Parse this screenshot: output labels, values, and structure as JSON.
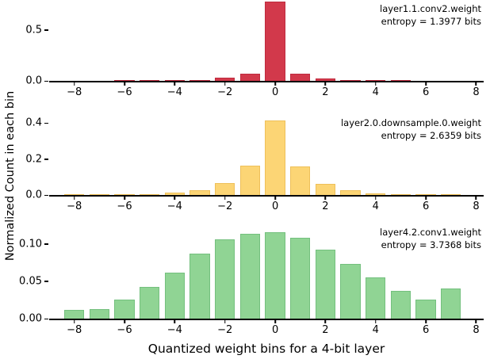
{
  "chart_data": {
    "type": "bar",
    "title": "",
    "xlabel": "Quantized weight bins for a 4-bit layer",
    "ylabel": "Normalized Count in each bin",
    "xlim": [
      -9.0,
      8.3
    ],
    "bar_width": 0.8,
    "grid": false,
    "bins": [
      -8,
      -7,
      -6,
      -5,
      -4,
      -3,
      -2,
      -1,
      0,
      1,
      2,
      3,
      4,
      5,
      6,
      7
    ],
    "x_ticks": [
      {
        "value": -8,
        "label": "−8"
      },
      {
        "value": -6,
        "label": "−6"
      },
      {
        "value": -4,
        "label": "−4"
      },
      {
        "value": -2,
        "label": "−2"
      },
      {
        "value": 0,
        "label": "0"
      },
      {
        "value": 2,
        "label": "2"
      },
      {
        "value": 4,
        "label": "4"
      },
      {
        "value": 6,
        "label": "6"
      },
      {
        "value": 8,
        "label": "8"
      }
    ],
    "subplots": [
      {
        "name": "layer1.1.conv2.weight",
        "entropy_label": "entropy = 1.3977 bits",
        "entropy_bits": 1.3977,
        "color": "#d2394b",
        "edge_color": "#bf2c3f",
        "ylim": [
          0,
          0.78
        ],
        "y_ticks": [
          {
            "value": 0.0,
            "label": "0.0"
          },
          {
            "value": 0.5,
            "label": "0.5"
          }
        ],
        "values": [
          0,
          0,
          0.001,
          0.002,
          0.004,
          0.01,
          0.028,
          0.068,
          0.78,
          0.068,
          0.026,
          0.009,
          0.003,
          0.001,
          0,
          0
        ]
      },
      {
        "name": "layer2.0.downsample.0.weight",
        "entropy_label": "entropy = 2.6359 bits",
        "entropy_bits": 2.6359,
        "color": "#fcd575",
        "edge_color": "#eec05a",
        "ylim": [
          0,
          0.44
        ],
        "y_ticks": [
          {
            "value": 0.0,
            "label": "0.0"
          },
          {
            "value": 0.2,
            "label": "0.2"
          },
          {
            "value": 0.4,
            "label": "0.4"
          }
        ],
        "values": [
          0.001,
          0.002,
          0.003,
          0.006,
          0.012,
          0.028,
          0.065,
          0.165,
          0.415,
          0.158,
          0.062,
          0.027,
          0.011,
          0.005,
          0.003,
          0.002
        ]
      },
      {
        "name": "layer4.2.conv1.weight",
        "entropy_label": "entropy = 3.7368 bits",
        "entropy_bits": 3.7368,
        "color": "#90d494",
        "edge_color": "#74c07e",
        "ylim": [
          0,
          0.125
        ],
        "y_ticks": [
          {
            "value": 0.0,
            "label": "0.00"
          },
          {
            "value": 0.05,
            "label": "0.05"
          },
          {
            "value": 0.1,
            "label": "0.10"
          }
        ],
        "values": [
          0.012,
          0.013,
          0.025,
          0.042,
          0.061,
          0.087,
          0.106,
          0.113,
          0.116,
          0.108,
          0.092,
          0.073,
          0.055,
          0.037,
          0.025,
          0.04
        ]
      }
    ]
  }
}
